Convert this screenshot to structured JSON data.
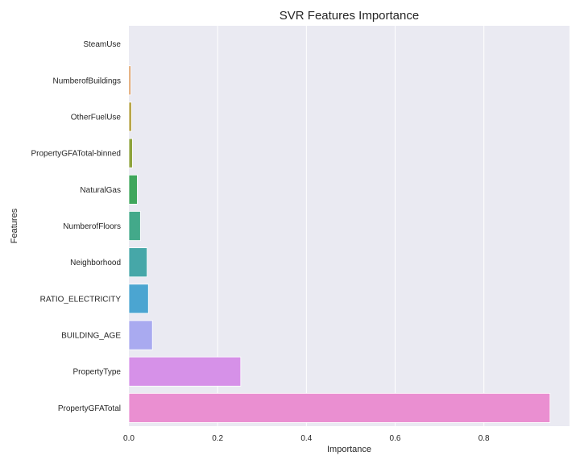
{
  "chart_data": {
    "type": "bar",
    "orientation": "horizontal",
    "title": "SVR Features Importance",
    "xlabel": "Importance",
    "ylabel": "Features",
    "xlim": [
      0,
      0.993
    ],
    "xticks": [
      0.0,
      0.2,
      0.4,
      0.6,
      0.8
    ],
    "xtick_labels": [
      "0.0",
      "0.2",
      "0.4",
      "0.6",
      "0.8"
    ],
    "grid": true,
    "legend": "none",
    "categories": [
      "SteamUse",
      "NumberofBuildings",
      "OtherFuelUse",
      "PropertyGFATotal-binned",
      "NaturalGas",
      "NumberofFloors",
      "Neighborhood",
      "RATIO_ELECTRICITY",
      "BUILDING_AGE",
      "PropertyType",
      "PropertyGFATotal"
    ],
    "values": [
      0.0,
      0.004,
      0.006,
      0.008,
      0.019,
      0.026,
      0.041,
      0.044,
      0.053,
      0.252,
      0.949
    ],
    "colors": [
      "#58b1b7",
      "#d98b45",
      "#b5a13f",
      "#8ea33d",
      "#3fa65c",
      "#43a98a",
      "#46a7a8",
      "#4ba5d1",
      "#a9aaf0",
      "#d691e8",
      "#ea8fd1"
    ],
    "background_color": "#eaeaf2",
    "grid_color": "#ffffff"
  }
}
